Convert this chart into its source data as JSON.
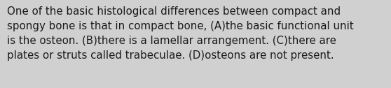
{
  "line1": "One of the basic histological differences between compact and",
  "line2": "spongy bone is that in compact bone, (A)the basic functional unit",
  "line3": "is the osteon. (B)there is a lamellar arrangement. (C)there are",
  "line4": "plates or struts called trabeculae. (D)osteons are not present.",
  "background_color": "#d0d0d0",
  "text_color": "#1a1a1a",
  "font_size": 10.8,
  "fig_width": 5.58,
  "fig_height": 1.26,
  "dpi": 100
}
